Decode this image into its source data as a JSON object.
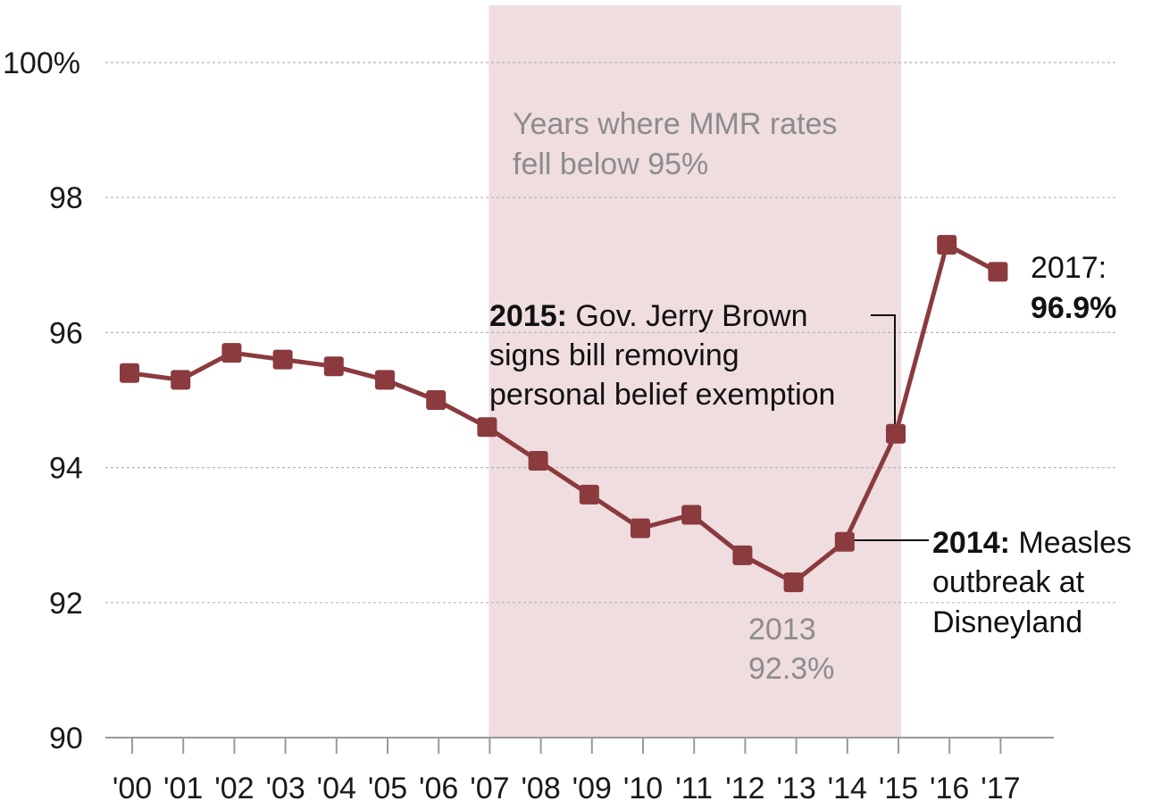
{
  "chart_data": {
    "type": "line",
    "categories": [
      "'00",
      "'01",
      "'02",
      "'03",
      "'04",
      "'05",
      "'06",
      "'07",
      "'08",
      "'09",
      "'10",
      "'11",
      "'12",
      "'13",
      "'14",
      "'15",
      "'16",
      "'17"
    ],
    "series": [
      {
        "values": [
          95.4,
          95.3,
          95.7,
          95.6,
          95.5,
          95.3,
          95.0,
          94.6,
          94.1,
          93.6,
          93.1,
          93.3,
          92.7,
          92.3,
          92.9,
          94.5,
          97.3,
          96.9
        ]
      }
    ],
    "ylim": [
      90,
      100
    ],
    "yticks": [
      "90",
      "92",
      "94",
      "96",
      "98",
      "100%"
    ],
    "grid": true,
    "highlight_band": {
      "from": "'07",
      "to": "'15",
      "label_lines": [
        "Years where MMR rates",
        "fell below 95%"
      ]
    },
    "annotations": {
      "a2015": {
        "bold": "2015:",
        "line1_rest": " Gov. Jerry Brown",
        "line2": "signs bill removing",
        "line3": "personal belief exemption"
      },
      "a2014": {
        "bold": "2014:",
        "line1_rest": " Measles",
        "line2": "outbreak at",
        "line3": "Disneyland"
      },
      "a2013": {
        "line1": "2013",
        "line2": "92.3%"
      },
      "a2017": {
        "line1": "2017:",
        "line2": "96.9%"
      }
    }
  },
  "colors": {
    "line": "#8b3a3e",
    "band": "#efdddf",
    "grid": "#b5b5b5",
    "axis": "#999999"
  }
}
